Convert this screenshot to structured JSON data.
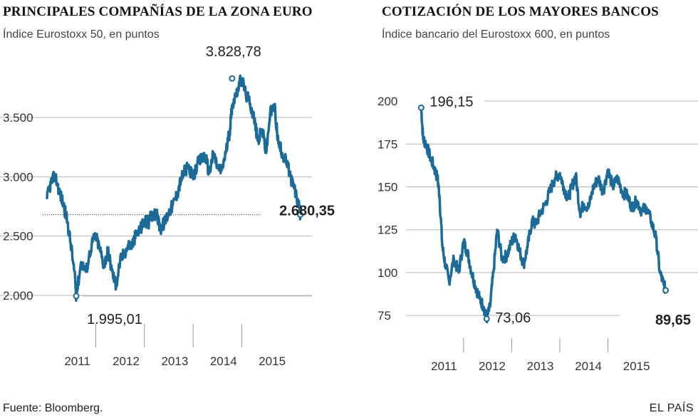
{
  "chart_data": [
    {
      "type": "line",
      "title": "PRINCIPALES COMPAÑÍAS DE LA ZONA EURO",
      "subtitle": "Índice Eurostoxx 50, en puntos",
      "y_ticks": [
        "2.000",
        "2.500",
        "3.000",
        "3.500"
      ],
      "y_tick_values": [
        2000,
        2500,
        3000,
        3500
      ],
      "x_ticks": [
        "2011",
        "2012",
        "2013",
        "2014",
        "2015"
      ],
      "x_tick_positions": [
        2011.0,
        2012.0,
        2013.0,
        2014.0,
        2015.0
      ],
      "xlim": [
        2010.5,
        2015.75
      ],
      "ylim": [
        1850,
        3950
      ],
      "grid": "horizontal",
      "annotations": {
        "max": {
          "label": "3.828,78",
          "x": 2014.3,
          "y": 3828.78
        },
        "min": {
          "label": "1.995,01",
          "x": 2011.1,
          "y": 1995.01
        },
        "last": {
          "label": "2.680,35",
          "x": 2015.7,
          "y": 2680.35
        }
      },
      "series": [
        {
          "color": "#1b6a98",
          "x": [
            2010.5,
            2010.58,
            2010.67,
            2010.75,
            2010.83,
            2010.92,
            2011.0,
            2011.08,
            2011.1,
            2011.2,
            2011.3,
            2011.42,
            2011.5,
            2011.58,
            2011.67,
            2011.75,
            2011.83,
            2011.92,
            2012.0,
            2012.08,
            2012.17,
            2012.25,
            2012.33,
            2012.42,
            2012.5,
            2012.58,
            2012.67,
            2012.75,
            2012.83,
            2012.92,
            2013.0,
            2013.08,
            2013.17,
            2013.25,
            2013.33,
            2013.42,
            2013.5,
            2013.58,
            2013.67,
            2013.75,
            2013.83,
            2013.92,
            2014.0,
            2014.08,
            2014.17,
            2014.25,
            2014.3,
            2014.42,
            2014.5,
            2014.58,
            2014.67,
            2014.75,
            2014.83,
            2014.92,
            2015.0,
            2015.08,
            2015.17,
            2015.25,
            2015.33,
            2015.42,
            2015.5,
            2015.58,
            2015.67,
            2015.7
          ],
          "y": [
            2820,
            2950,
            3010,
            2880,
            2780,
            2620,
            2400,
            2120,
            1995.01,
            2280,
            2200,
            2440,
            2500,
            2400,
            2250,
            2380,
            2210,
            2080,
            2290,
            2350,
            2420,
            2430,
            2510,
            2560,
            2630,
            2610,
            2700,
            2680,
            2560,
            2620,
            2700,
            2760,
            2850,
            2980,
            3050,
            3080,
            2980,
            3100,
            3150,
            3180,
            3030,
            3200,
            3080,
            3050,
            3200,
            3380,
            3600,
            3750,
            3828.78,
            3700,
            3620,
            3500,
            3300,
            3400,
            3200,
            3530,
            3600,
            3280,
            3200,
            3120,
            3000,
            2900,
            2750,
            2680.35
          ]
        }
      ]
    },
    {
      "type": "line",
      "title": "COTIZACIÓN DE LOS MAYORES BANCOS",
      "subtitle": "Índice bancario del Eurostoxx 600, en puntos",
      "y_ticks": [
        "75",
        "100",
        "125",
        "150",
        "175",
        "200"
      ],
      "y_tick_values": [
        75,
        100,
        125,
        150,
        175,
        200
      ],
      "x_ticks": [
        "2011",
        "2012",
        "2013",
        "2014",
        "2015"
      ],
      "x_tick_positions": [
        2011.0,
        2012.0,
        2013.0,
        2014.0,
        2015.0
      ],
      "xlim": [
        2010.6,
        2015.75
      ],
      "ylim": [
        68,
        205
      ],
      "grid": "horizontal",
      "annotations": {
        "max": {
          "label": "196,15",
          "x": 2010.62,
          "y": 196.15
        },
        "min": {
          "label": "73,06",
          "x": 2011.98,
          "y": 73.06
        },
        "last": {
          "label": "89,65",
          "x": 2015.7,
          "y": 89.65
        }
      },
      "series": [
        {
          "color": "#1b6a98",
          "x": [
            2010.62,
            2010.66,
            2010.72,
            2010.8,
            2010.88,
            2010.96,
            2011.0,
            2011.06,
            2011.12,
            2011.2,
            2011.3,
            2011.4,
            2011.5,
            2011.58,
            2011.67,
            2011.75,
            2011.83,
            2011.92,
            2011.98,
            2012.05,
            2012.12,
            2012.2,
            2012.3,
            2012.4,
            2012.5,
            2012.58,
            2012.67,
            2012.75,
            2012.83,
            2012.92,
            2013.0,
            2013.1,
            2013.2,
            2013.3,
            2013.4,
            2013.5,
            2013.58,
            2013.67,
            2013.75,
            2013.83,
            2013.92,
            2014.0,
            2014.1,
            2014.2,
            2014.3,
            2014.4,
            2014.5,
            2014.6,
            2014.7,
            2014.8,
            2014.9,
            2015.0,
            2015.1,
            2015.2,
            2015.3,
            2015.4,
            2015.5,
            2015.58,
            2015.66,
            2015.7
          ],
          "y": [
            196.15,
            178,
            175,
            168,
            162,
            155,
            145,
            115,
            105,
            95,
            108,
            100,
            118,
            112,
            100,
            92,
            85,
            80,
            73.06,
            80,
            100,
            125,
            108,
            110,
            118,
            122,
            112,
            105,
            115,
            130,
            128,
            135,
            140,
            148,
            155,
            158,
            150,
            143,
            150,
            157,
            135,
            140,
            138,
            150,
            155,
            147,
            160,
            150,
            155,
            147,
            145,
            138,
            142,
            136,
            138,
            130,
            120,
            100,
            93,
            89.65
          ]
        }
      ]
    }
  ],
  "panels": {
    "left": {
      "title": "PRINCIPALES COMPAÑÍAS DE LA ZONA EURO",
      "subtitle": "Índice Eurostoxx 50, en puntos"
    },
    "right": {
      "title": "COTIZACIÓN DE LOS MAYORES BANCOS",
      "subtitle": "Índice bancario del Eurostoxx 600, en puntos"
    }
  },
  "footer": {
    "source": "Fuente: Bloomberg.",
    "brand": "EL PAÍS"
  },
  "colors": {
    "line": "#1b6a98",
    "grid": "#b5b5b5",
    "text": "#222222"
  }
}
